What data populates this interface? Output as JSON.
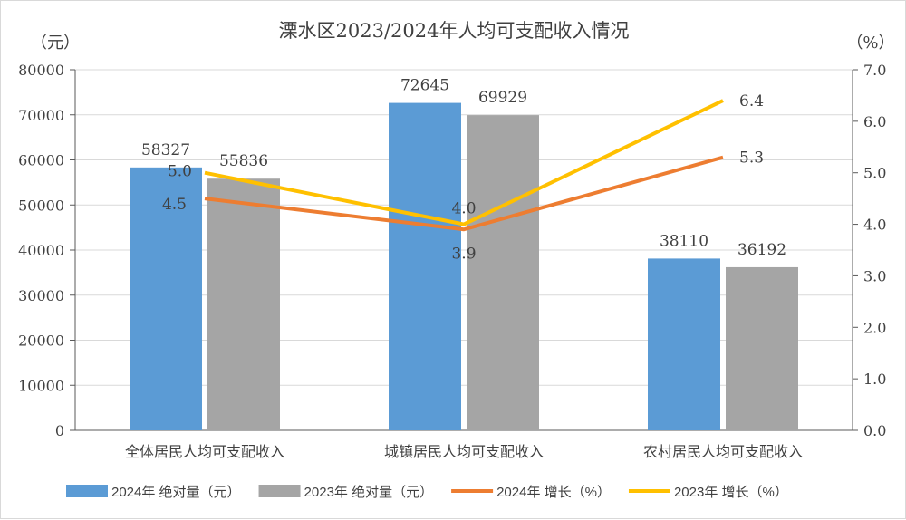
{
  "chart_data": {
    "type": "bar+line",
    "title": "溧水区2023/2024年人均可支配收入情况",
    "ylabel_left": "（元）",
    "ylabel_right": "（%）",
    "categories": [
      "全体居民人均可支配收入",
      "城镇居民人均可支配收入",
      "农村居民人均可支配收入"
    ],
    "left_axis": {
      "range": [
        0,
        80000
      ],
      "ticks": [
        "0",
        "10000",
        "20000",
        "30000",
        "40000",
        "50000",
        "60000",
        "70000",
        "80000"
      ]
    },
    "right_axis": {
      "range": [
        0,
        7
      ],
      "ticks": [
        "0.0",
        "1.0",
        "2.0",
        "3.0",
        "4.0",
        "5.0",
        "6.0",
        "7.0"
      ]
    },
    "bar_series": [
      {
        "name": "2024年 绝对量（元）",
        "color": "#5b9bd5",
        "values": [
          58327,
          72645,
          38110
        ]
      },
      {
        "name": "2023年 绝对量（元）",
        "color": "#a5a5a5",
        "values": [
          55836,
          69929,
          36192
        ]
      }
    ],
    "line_series": [
      {
        "name": "2024年 增长（%）",
        "color": "#ed7d31",
        "values": [
          4.5,
          3.9,
          5.3
        ]
      },
      {
        "name": "2023年 增长（%）",
        "color": "#ffc000",
        "values": [
          5.0,
          4.0,
          6.4
        ]
      }
    ],
    "grid": true,
    "legend": "bottom"
  }
}
